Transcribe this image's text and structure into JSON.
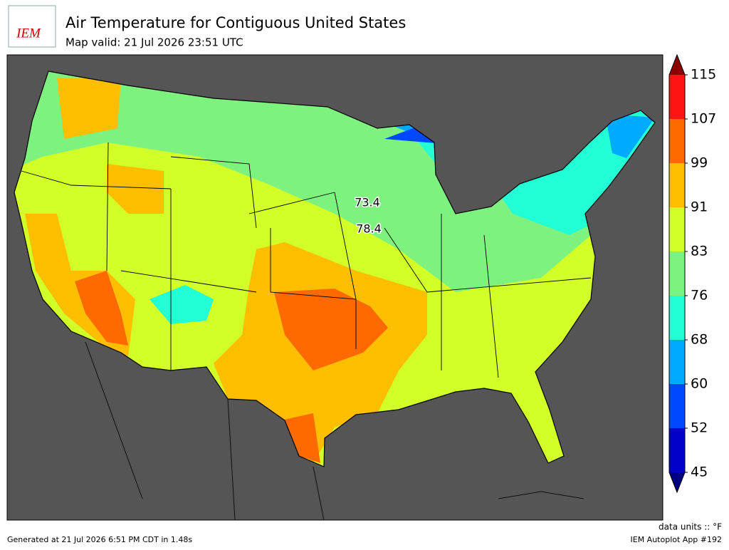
{
  "header": {
    "logo": "IEM",
    "title": "Air Temperature for Contiguous United States",
    "subtitle": "Map valid: 21 Jul 2026 23:51 UTC"
  },
  "colorbar": {
    "ticks": [
      45,
      52,
      60,
      68,
      76,
      83,
      91,
      99,
      107,
      115
    ],
    "colors": [
      "#0000c8",
      "#0048ff",
      "#00aaff",
      "#22ffd4",
      "#7ef27e",
      "#d2ff28",
      "#ffbe00",
      "#ff6a00",
      "#ff1414"
    ],
    "under_color": "#000080",
    "over_color": "#8b0000"
  },
  "stations": [
    {
      "value": 73.4
    },
    {
      "value": 78.4
    }
  ],
  "footer": {
    "units": "data units :: °F",
    "generated": "Generated at 21 Jul 2026 6:51 PM CDT in 1.48s",
    "app": "IEM Autoplot App #192"
  }
}
